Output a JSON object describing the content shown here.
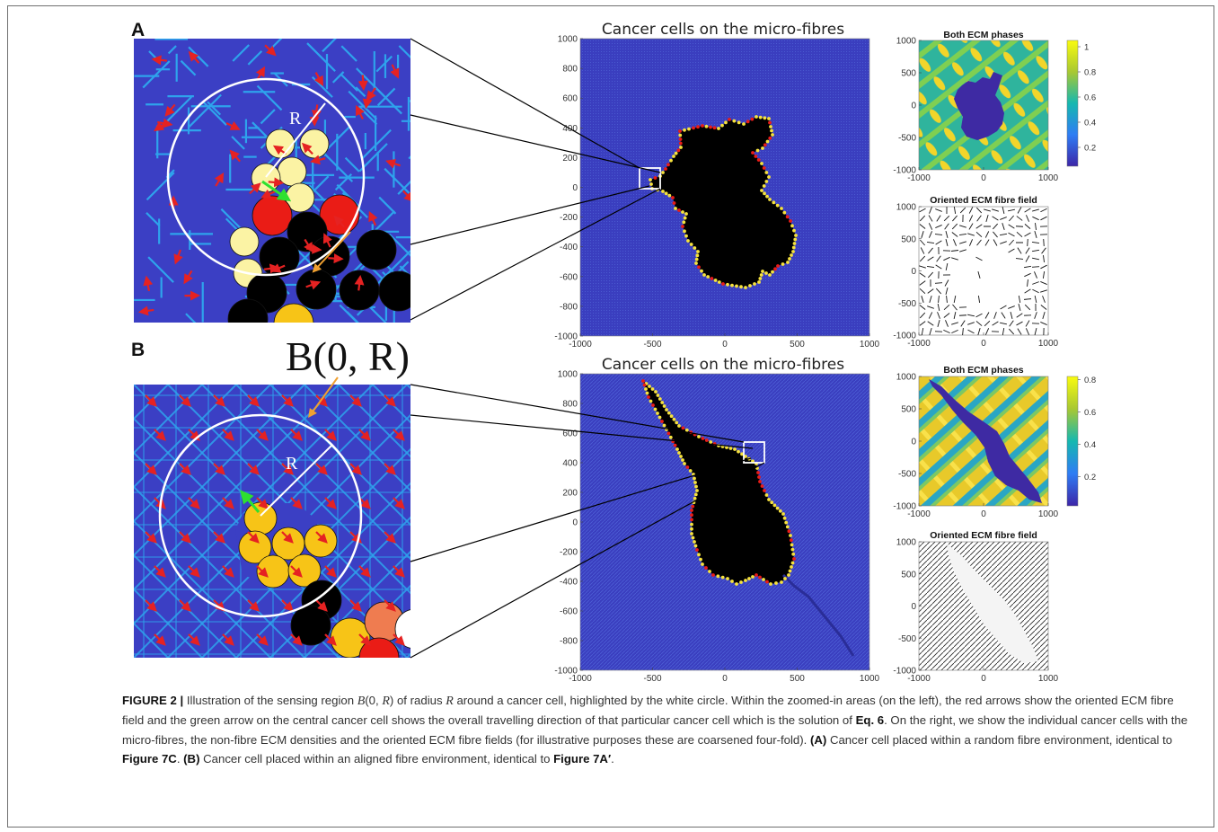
{
  "figure": {
    "panel_a_letter": "A",
    "panel_b_letter": "B",
    "radius_label": "R",
    "ball_label": "B(0, R)",
    "panels": [
      {
        "main_title": "Cancer cells on the micro-fibres",
        "ecm_phases_title": "Both ECM phases",
        "fibre_field_title": "Oriented ECM fibre field",
        "main_x_ticks": [
          "-1000",
          "-500",
          "0",
          "500",
          "1000"
        ],
        "main_y_ticks": [
          "1000",
          "800",
          "600",
          "400",
          "200",
          "0",
          "-200",
          "-400",
          "-600",
          "-800",
          "-1000"
        ],
        "small_x_ticks": [
          "-1000",
          "0",
          "1000"
        ],
        "ecm_y_ticks": [
          "1000",
          "500",
          "0",
          "-500",
          "-1000"
        ],
        "colorbar_ticks": [
          "1",
          "0.8",
          "0.6",
          "0.4",
          "0.2"
        ],
        "colorbar_max": 1.05,
        "colorbar_min": 0.05
      },
      {
        "main_title": "Cancer cells on the micro-fibres",
        "ecm_phases_title": "Both ECM phases",
        "fibre_field_title": "Oriented ECM fibre field",
        "main_x_ticks": [
          "-1000",
          "-500",
          "0",
          "500",
          "1000"
        ],
        "main_y_ticks": [
          "1000",
          "800",
          "600",
          "400",
          "200",
          "0",
          "-200",
          "-400",
          "-600",
          "-800",
          "-1000"
        ],
        "small_x_ticks": [
          "-1000",
          "0",
          "1000"
        ],
        "ecm_y_ticks": [
          "1000",
          "500",
          "0",
          "-500",
          "-1000"
        ],
        "colorbar_ticks": [
          "0.8",
          "0.6",
          "0.4",
          "0.2"
        ],
        "colorbar_max": 0.82,
        "colorbar_min": 0.02
      }
    ],
    "colors": {
      "background_ecm": "#3b3fc4",
      "fibre": "#2ea3ec",
      "red_arrow": "#e52222",
      "green_arrow": "#2ee030",
      "cell_light": "#fbf3a4",
      "cell_gold": "#f7c417",
      "cell_red": "#ea1c16",
      "cell_black": "#000000",
      "cell_orange": "#ef7c50",
      "pointer_orange": "#f0a030",
      "circle": "#ffffff"
    }
  },
  "caption": {
    "label": "FIGURE 2 |",
    "text_1": " Illustration of the sensing region ",
    "math_1": "B",
    "math_2": "(0, ",
    "math_3": "R",
    "math_4": ")",
    "text_2": " of radius ",
    "math_5": "R",
    "text_3": " around a cancer cell, highlighted by the white circle. Within the zoomed-in areas (on the left), the red arrows show the oriented ECM fibre field and the green arrow on the central cancer cell shows the overall travelling direction of that particular cancer cell which is the solution of ",
    "eq_ref": "Eq. 6",
    "text_4": ". On the right, we show the individual cancer cells with the micro-fibres, the non-fibre ECM densities and the oriented ECM fibre fields (for illustrative purposes these are coarsened four-fold). ",
    "ref_a": "(A)",
    "text_5": " Cancer cell placed within a random fibre environment, identical to ",
    "fig_ref_1": "Figure 7C",
    "text_6": ". ",
    "ref_b": "(B)",
    "text_7": " Cancer cell placed within an aligned fibre environment, identical to ",
    "fig_ref_2": "Figure 7A′",
    "text_8": "."
  }
}
